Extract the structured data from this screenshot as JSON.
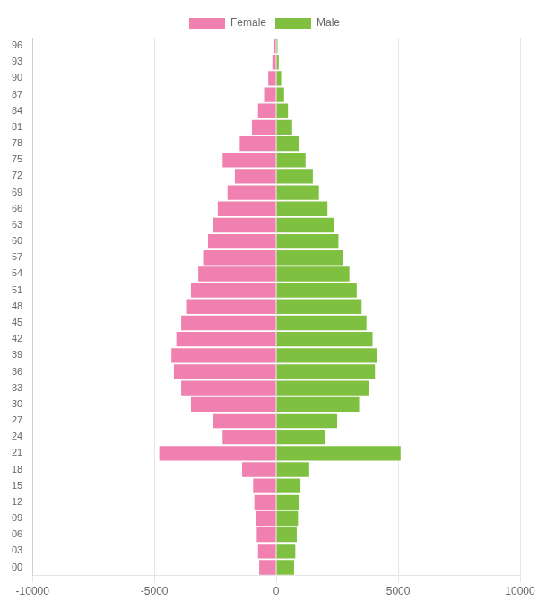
{
  "chart_data": {
    "type": "bar",
    "orientation": "horizontal",
    "stacked": true,
    "categories": [
      "00",
      "03",
      "06",
      "09",
      "12",
      "15",
      "18",
      "21",
      "24",
      "27",
      "30",
      "33",
      "36",
      "39",
      "42",
      "45",
      "48",
      "51",
      "54",
      "57",
      "60",
      "63",
      "66",
      "69",
      "72",
      "75",
      "78",
      "81",
      "84",
      "87",
      "90",
      "93",
      "96"
    ],
    "series": [
      {
        "name": "Female",
        "color": "#f080b0",
        "values": [
          -700,
          -750,
          -800,
          -850,
          -900,
          -950,
          -1400,
          -4800,
          -2200,
          -2600,
          -3500,
          -3900,
          -4200,
          -4300,
          -4100,
          -3900,
          -3700,
          -3500,
          -3200,
          -3000,
          -2800,
          -2600,
          -2400,
          -2000,
          -1700,
          -2200,
          -1500,
          -1000,
          -750,
          -500,
          -330,
          -160,
          -80
        ]
      },
      {
        "name": "Male",
        "color": "#80c040",
        "values": [
          730,
          780,
          840,
          890,
          940,
          990,
          1350,
          5100,
          2000,
          2500,
          3400,
          3800,
          4050,
          4150,
          3950,
          3700,
          3500,
          3300,
          3000,
          2750,
          2550,
          2350,
          2100,
          1750,
          1500,
          1200,
          950,
          650,
          480,
          320,
          200,
          100,
          50
        ]
      }
    ],
    "xlim": [
      -10000,
      10000
    ],
    "xticks": [
      -10000,
      -5000,
      0,
      5000,
      10000
    ],
    "grid": true,
    "legend": "top"
  }
}
